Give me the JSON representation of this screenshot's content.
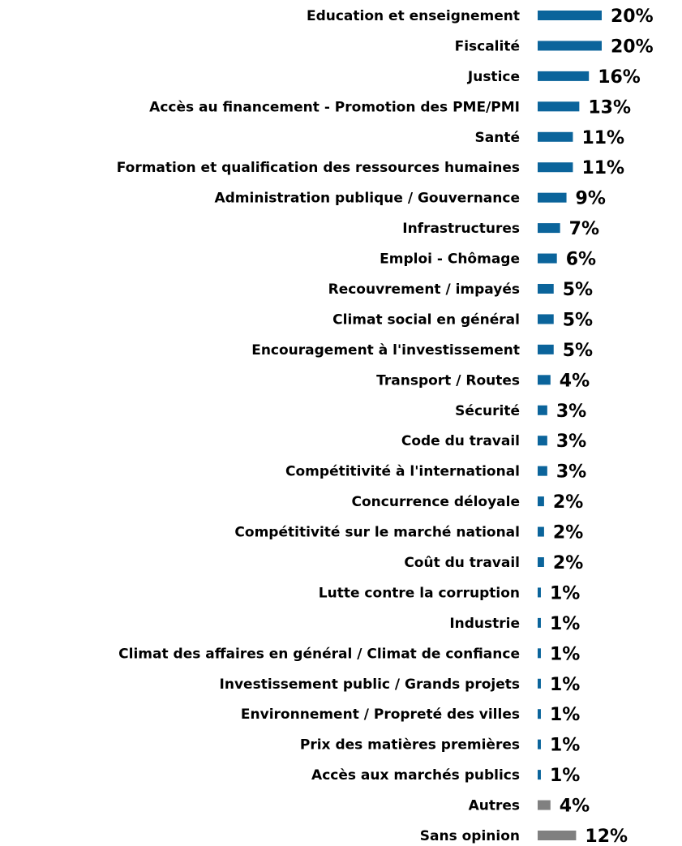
{
  "chart_data": {
    "type": "bar",
    "orientation": "horizontal",
    "categories": [
      "Education et enseignement",
      "Fiscalité",
      "Justice",
      "Accès au financement - Promotion des PME/PMI",
      "Santé",
      "Formation et qualification des ressources humaines",
      "Administration publique / Gouvernance",
      "Infrastructures",
      "Emploi - Chômage",
      "Recouvrement / impayés",
      "Climat social en général",
      "Encouragement à l'investissement",
      "Transport / Routes",
      "Sécurité",
      "Code du travail",
      "Compétitivité à l'international",
      "Concurrence déloyale",
      "Compétitivité sur le marché national",
      "Coût du travail",
      "Lutte contre la corruption",
      "Industrie",
      "Climat des affaires en général / Climat de confiance",
      "Investissement public / Grands projets",
      "Environnement / Propreté des villes",
      "Prix des matières premières",
      "Accès aux marchés publics",
      "Autres",
      "Sans opinion"
    ],
    "values": [
      20,
      20,
      16,
      13,
      11,
      11,
      9,
      7,
      6,
      5,
      5,
      5,
      4,
      3,
      3,
      3,
      2,
      2,
      2,
      1,
      1,
      1,
      1,
      1,
      1,
      1,
      4,
      12
    ],
    "value_labels": [
      "20%",
      "20%",
      "16%",
      "13%",
      "11%",
      "11%",
      "9%",
      "7%",
      "6%",
      "5%",
      "5%",
      "5%",
      "4%",
      "3%",
      "3%",
      "3%",
      "2%",
      "2%",
      "2%",
      "1%",
      "1%",
      "1%",
      "1%",
      "1%",
      "1%",
      "1%",
      "4%",
      "12%"
    ],
    "colors": [
      "#0b649b",
      "#0b649b",
      "#0b649b",
      "#0b649b",
      "#0b649b",
      "#0b649b",
      "#0b649b",
      "#0b649b",
      "#0b649b",
      "#0b649b",
      "#0b649b",
      "#0b649b",
      "#0b649b",
      "#0b649b",
      "#0b649b",
      "#0b649b",
      "#0b649b",
      "#0b649b",
      "#0b649b",
      "#0b649b",
      "#0b649b",
      "#0b649b",
      "#0b649b",
      "#0b649b",
      "#0b649b",
      "#0b649b",
      "#808080",
      "#808080"
    ]
  }
}
